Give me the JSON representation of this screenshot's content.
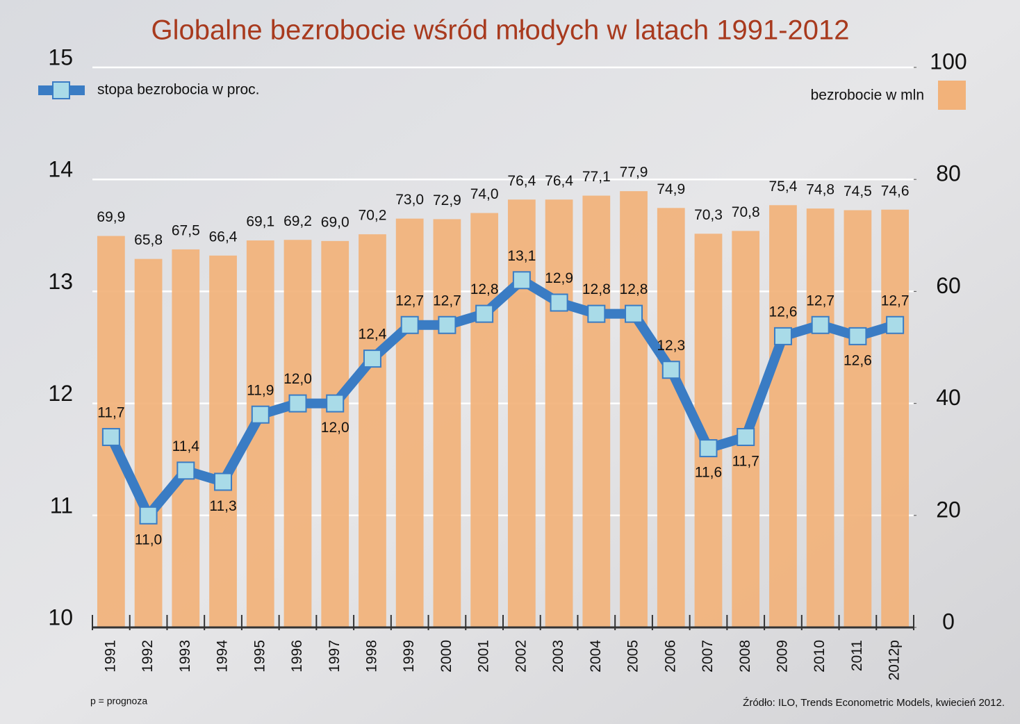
{
  "chart_data": {
    "type": "bar",
    "title": "Globalne bezrobocie wśród młodych w latach 1991-2012",
    "categories": [
      "1991",
      "1992",
      "1993",
      "1994",
      "1995",
      "1996",
      "1997",
      "1998",
      "1999",
      "2000",
      "2001",
      "2002",
      "2003",
      "2004",
      "2005",
      "2006",
      "2007",
      "2008",
      "2009",
      "2010",
      "2011",
      "2012p"
    ],
    "series": [
      {
        "name": "bezrobocie w mln",
        "type": "bar",
        "axis": "y2",
        "color": "#f2b27a",
        "values": [
          69.9,
          65.8,
          67.5,
          66.4,
          69.1,
          69.2,
          69.0,
          70.2,
          73.0,
          72.9,
          74.0,
          76.4,
          76.4,
          77.1,
          77.9,
          74.9,
          70.3,
          70.8,
          75.4,
          74.8,
          74.5,
          74.6
        ],
        "value_labels": [
          "69,9",
          "65,8",
          "67,5",
          "66,4",
          "69,1",
          "69,2",
          "69,0",
          "70,2",
          "73,0",
          "72,9",
          "74,0",
          "76,4",
          "76,4",
          "77,1",
          "77,9",
          "74,9",
          "70,3",
          "70,8",
          "75,4",
          "74,8",
          "74,5",
          "74,6"
        ]
      },
      {
        "name": "stopa bezrobocia w proc.",
        "type": "line",
        "axis": "y",
        "color": "#3a7cc4",
        "marker_color": "#a9dbe8",
        "values": [
          11.7,
          11.0,
          11.4,
          11.3,
          11.9,
          12.0,
          12.0,
          12.4,
          12.7,
          12.7,
          12.8,
          13.1,
          12.9,
          12.8,
          12.8,
          12.3,
          11.6,
          11.7,
          12.6,
          12.7,
          12.6,
          12.7
        ],
        "value_labels": [
          "11,7",
          "11,0",
          "11,4",
          "11,3",
          "11,9",
          "12,0",
          "12,0",
          "12,4",
          "12,7",
          "12,7",
          "12,8",
          "13,1",
          "12,9",
          "12,8",
          "12,8",
          "12,3",
          "11,6",
          "11,7",
          "12,6",
          "12,7",
          "12,6",
          "12,7"
        ]
      }
    ],
    "ylim": [
      10,
      15
    ],
    "yticks": [
      10,
      11,
      12,
      13,
      14,
      15
    ],
    "y2lim": [
      0,
      100
    ],
    "y2ticks": [
      0,
      20,
      40,
      60,
      80,
      100
    ],
    "grid": true,
    "note": "p = prognoza",
    "source": "Źródło: ILO, Trends Econometric Models, kwiecień 2012."
  }
}
